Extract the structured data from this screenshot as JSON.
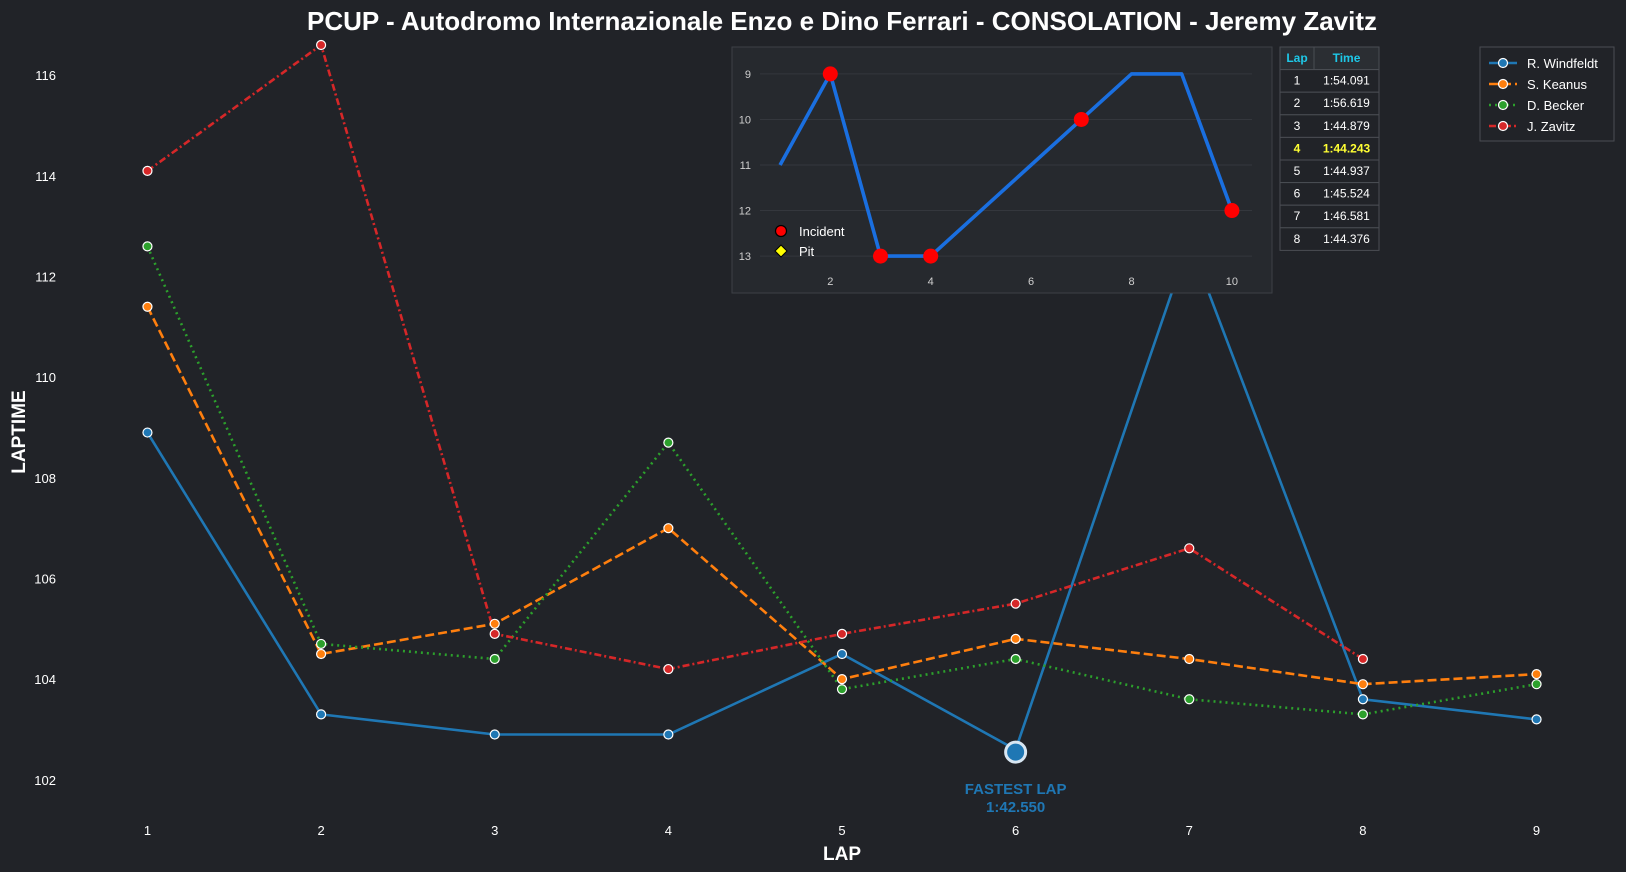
{
  "chart_data": [
    {
      "type": "line",
      "title": "PCUP - Autodromo Internazionale Enzo e Dino Ferrari - CONSOLATION - Jeremy Zavitz",
      "xlabel": "LAP",
      "ylabel": "LAPTIME",
      "x": [
        1,
        2,
        3,
        4,
        5,
        6,
        7,
        8,
        9
      ],
      "xticks": [
        "1",
        "2",
        "3",
        "4",
        "5",
        "6",
        "7",
        "8",
        "9"
      ],
      "yticks": [
        "102",
        "104",
        "106",
        "108",
        "110",
        "112",
        "114",
        "116"
      ],
      "xlim": [
        0.6,
        9.4
      ],
      "ylim": [
        101.4,
        116.7
      ],
      "grid": false,
      "legend_position": "top-right",
      "series": [
        {
          "name": "R. Windfeldt",
          "color": "#1f77b4",
          "style": "solid",
          "values": [
            108.9,
            103.3,
            102.9,
            102.9,
            104.5,
            102.6,
            112.7,
            103.6,
            103.2
          ]
        },
        {
          "name": "S. Keanus",
          "color": "#ff7f0e",
          "style": "dashed",
          "values": [
            111.4,
            104.5,
            105.1,
            107.0,
            104.0,
            104.8,
            104.4,
            103.9,
            104.1
          ]
        },
        {
          "name": "D. Becker",
          "color": "#2ca02c",
          "style": "dotted",
          "values": [
            112.6,
            104.7,
            104.4,
            108.7,
            103.8,
            104.4,
            103.6,
            103.3,
            103.9
          ]
        },
        {
          "name": "J. Zavitz",
          "color": "#d62728",
          "style": "dashdot",
          "values": [
            114.1,
            116.6,
            104.9,
            104.2,
            104.9,
            105.5,
            106.6,
            104.4,
            null
          ]
        }
      ],
      "annotation": {
        "label": "FASTEST LAP",
        "time": "1:42.550",
        "x": 6,
        "y": 102.55,
        "color": "#1f77b4"
      }
    },
    {
      "type": "line",
      "title": "",
      "x": [
        1,
        2,
        3,
        4,
        5,
        6,
        7,
        8,
        9,
        10
      ],
      "values": [
        11,
        9,
        13,
        13,
        12,
        11,
        10,
        9,
        9,
        12
      ],
      "xticks": [
        "2",
        "4",
        "6",
        "8",
        "10"
      ],
      "yticks": [
        "9",
        "10",
        "11",
        "12",
        "13"
      ],
      "xlim": [
        0.6,
        10.4
      ],
      "ylim": [
        13.35,
        8.65
      ],
      "y_inverted": true,
      "line_color": "#1a6fe0",
      "incidents": [
        2,
        3,
        4,
        7,
        10
      ],
      "legend": [
        {
          "label": "Incident",
          "marker": "circle",
          "color": "#ff0000"
        },
        {
          "label": "Pit",
          "marker": "diamond",
          "color": "#ffff00"
        }
      ]
    }
  ],
  "lap_table": {
    "headers": [
      "Lap",
      "Time"
    ],
    "rows": [
      [
        "1",
        "1:54.091"
      ],
      [
        "2",
        "1:56.619"
      ],
      [
        "3",
        "1:44.879"
      ],
      [
        "4",
        "1:44.243"
      ],
      [
        "5",
        "1:44.937"
      ],
      [
        "6",
        "1:45.524"
      ],
      [
        "7",
        "1:46.581"
      ],
      [
        "8",
        "1:44.376"
      ]
    ],
    "best_row": 3
  }
}
